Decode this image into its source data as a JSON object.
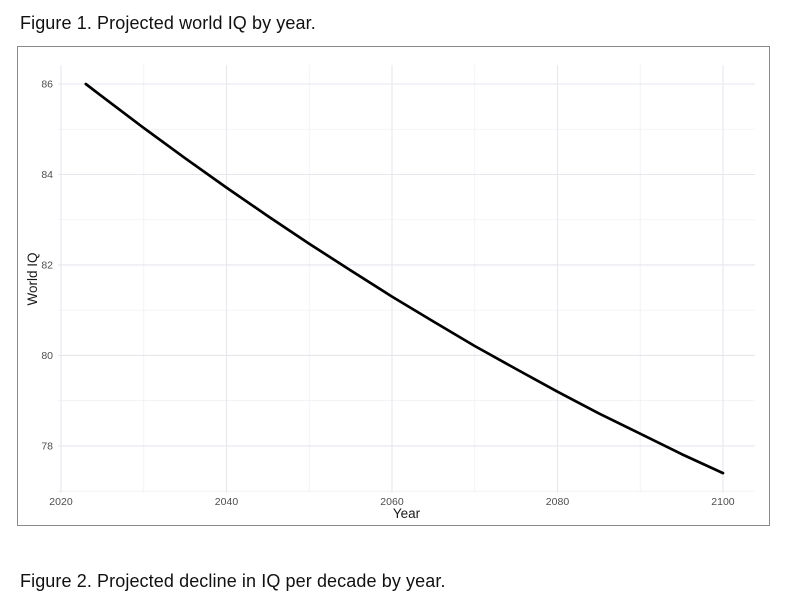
{
  "page": {
    "caption1": "Figure 1. Projected world IQ by year.",
    "caption2": "Figure 2. Projected decline in IQ per decade by year."
  },
  "style": {
    "caption_color": "#111111",
    "frame_border_color": "#8a8a8a",
    "panel_background": "#ffffff",
    "grid_major_color": "#e7e6ed",
    "grid_minor_color": "#f1f0f5",
    "tick_label_color": "#4d4d4d",
    "axis_title_color": "#1a1a1a",
    "line_color": "#000000"
  },
  "chart_data": {
    "type": "line",
    "title": "",
    "xlabel": "Year",
    "ylabel": "World IQ",
    "xlim": [
      2019.64,
      2103.87
    ],
    "ylim": [
      76.96,
      86.42
    ],
    "x_ticks": [
      2020,
      2040,
      2060,
      2080,
      2100
    ],
    "y_ticks": [
      78,
      80,
      82,
      84,
      86
    ],
    "x_minor_ticks": [
      2030,
      2050,
      2070,
      2090
    ],
    "y_minor_ticks": [
      77,
      79,
      81,
      83,
      85
    ],
    "grid": "major+minor",
    "legend_position": "none",
    "series": [
      {
        "name": "Projected world IQ",
        "points": [
          [
            2023,
            86.0
          ],
          [
            2025,
            85.72
          ],
          [
            2030,
            85.03
          ],
          [
            2035,
            84.36
          ],
          [
            2040,
            83.71
          ],
          [
            2045,
            83.08
          ],
          [
            2050,
            82.47
          ],
          [
            2055,
            81.88
          ],
          [
            2060,
            81.3
          ],
          [
            2065,
            80.75
          ],
          [
            2070,
            80.21
          ],
          [
            2075,
            79.7
          ],
          [
            2080,
            79.2
          ],
          [
            2085,
            78.72
          ],
          [
            2090,
            78.27
          ],
          [
            2095,
            77.82
          ],
          [
            2100,
            77.4
          ]
        ]
      }
    ]
  }
}
